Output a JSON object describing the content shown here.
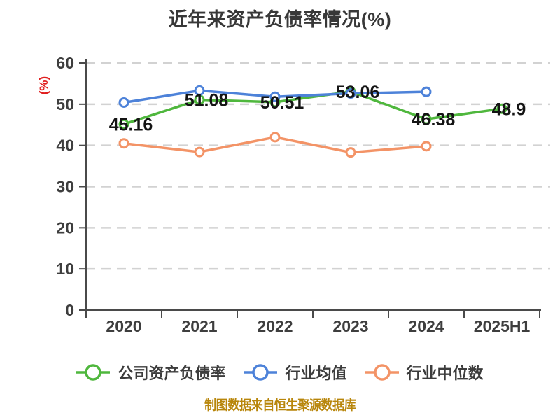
{
  "title": "近年来资产负债率情况(%)",
  "y_axis_label": "(%)",
  "footer": "制图数据来自恒生聚源数据库",
  "chart_data": {
    "type": "line",
    "title": "近年来资产负债率情况(%)",
    "categories": [
      "2020",
      "2021",
      "2022",
      "2023",
      "2024",
      "2025H1"
    ],
    "series": [
      {
        "name": "公司资产负债率",
        "color": "#4fb73d",
        "marker": "circle-white-fill",
        "values": [
          45.16,
          51.08,
          50.51,
          53.06,
          46.38,
          48.9
        ],
        "point_labels": [
          "45.16",
          "51.08",
          "50.51",
          "53.06",
          "46.38",
          "48.9"
        ]
      },
      {
        "name": "行业均值",
        "color": "#4d82d9",
        "marker": "circle-white-fill",
        "values": [
          50.4,
          53.3,
          51.8,
          52.6,
          53.0,
          null
        ],
        "point_labels": null
      },
      {
        "name": "行业中位数",
        "color": "#f39366",
        "marker": "circle-white-fill",
        "values": [
          40.5,
          38.4,
          42.0,
          38.3,
          39.8,
          null
        ],
        "point_labels": null
      }
    ],
    "ylabel": "(%)",
    "ylim": [
      0,
      60
    ],
    "yticks": [
      0,
      10,
      20,
      30,
      40,
      50,
      60
    ],
    "grid": "horizontal-dashed",
    "legend_position": "bottom"
  },
  "colors": {
    "background": "#ffffff",
    "title": "#383838",
    "axis": "#4a4a4a",
    "tick_label": "#3e3e3e",
    "gridline": "#d2d2d2",
    "data_label": "#141414",
    "y_axis_label": "#e01e1e",
    "footer": "#b8860b"
  }
}
